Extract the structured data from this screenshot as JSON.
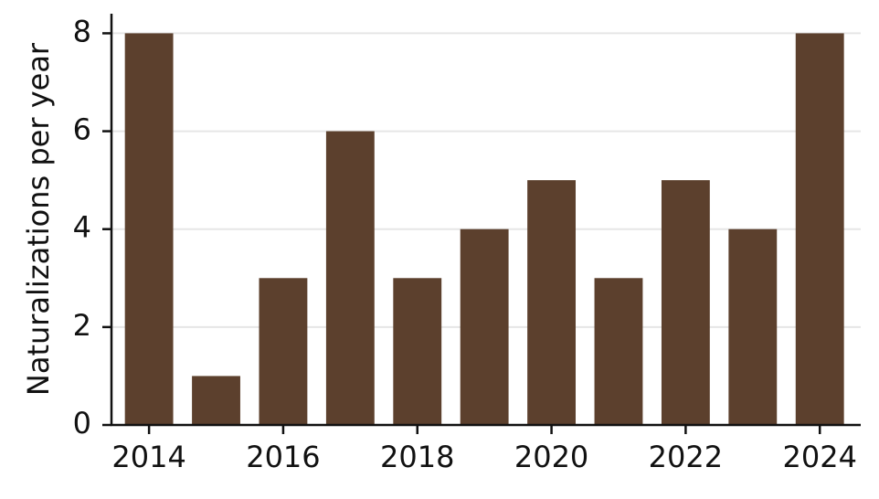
{
  "chart_data": {
    "type": "bar",
    "y_label": "Naturalizations per year",
    "x": [
      2014,
      2015,
      2016,
      2017,
      2018,
      2019,
      2020,
      2021,
      2022,
      2023,
      2024
    ],
    "values": [
      8,
      1,
      3,
      6,
      3,
      4,
      5,
      3,
      5,
      4,
      8
    ],
    "color": "#5c402d",
    "xlim": [
      2013.44,
      2024.61
    ],
    "xticks": [
      2014,
      2016,
      2018,
      2020,
      2022,
      2024
    ],
    "ylim": [
      0,
      8.4
    ],
    "yticks": [
      0,
      2,
      4,
      6,
      8
    ],
    "grid": true
  }
}
